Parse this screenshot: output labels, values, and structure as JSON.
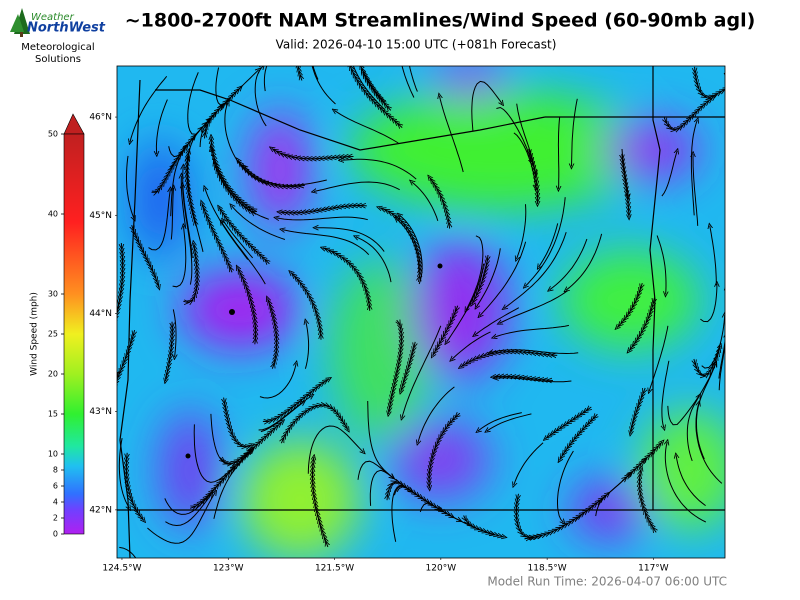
{
  "header": {
    "title": "~1800-2700ft NAM Streamlines/Wind Speed (60-90mb agl)",
    "subtitle": "Valid: 2026-04-10 15:00 UTC  (+081h Forecast)"
  },
  "logo": {
    "line1": "Weather",
    "line2": "NorthWest",
    "caption": "Meteorological Solutions"
  },
  "colorbar": {
    "label": "Wind Speed (mph)",
    "lim": [
      0,
      50
    ],
    "ticks": [
      0,
      2,
      4,
      6,
      8,
      10,
      15,
      20,
      25,
      30,
      40,
      50
    ]
  },
  "map": {
    "lonlim": [
      -124.57,
      -115.99
    ],
    "latlim": [
      41.51,
      46.52
    ],
    "lon_ticks": [
      {
        "value": -124.5,
        "label": "124.5°W"
      },
      {
        "value": -123,
        "label": "123°W"
      },
      {
        "value": -121.5,
        "label": "121.5°W"
      },
      {
        "value": -120,
        "label": "120°W"
      },
      {
        "value": -118.5,
        "label": "118.5°W"
      },
      {
        "value": -117,
        "label": "117°W"
      }
    ],
    "lat_ticks": [
      {
        "value": 46,
        "label": "46°N"
      },
      {
        "value": 45,
        "label": "45°N"
      },
      {
        "value": 44,
        "label": "44°N"
      },
      {
        "value": 43,
        "label": "43°N"
      },
      {
        "value": 42,
        "label": "42°N"
      }
    ]
  },
  "footer": {
    "run_time": "Model Run Time: 2026-04-07 06:00 UTC"
  }
}
